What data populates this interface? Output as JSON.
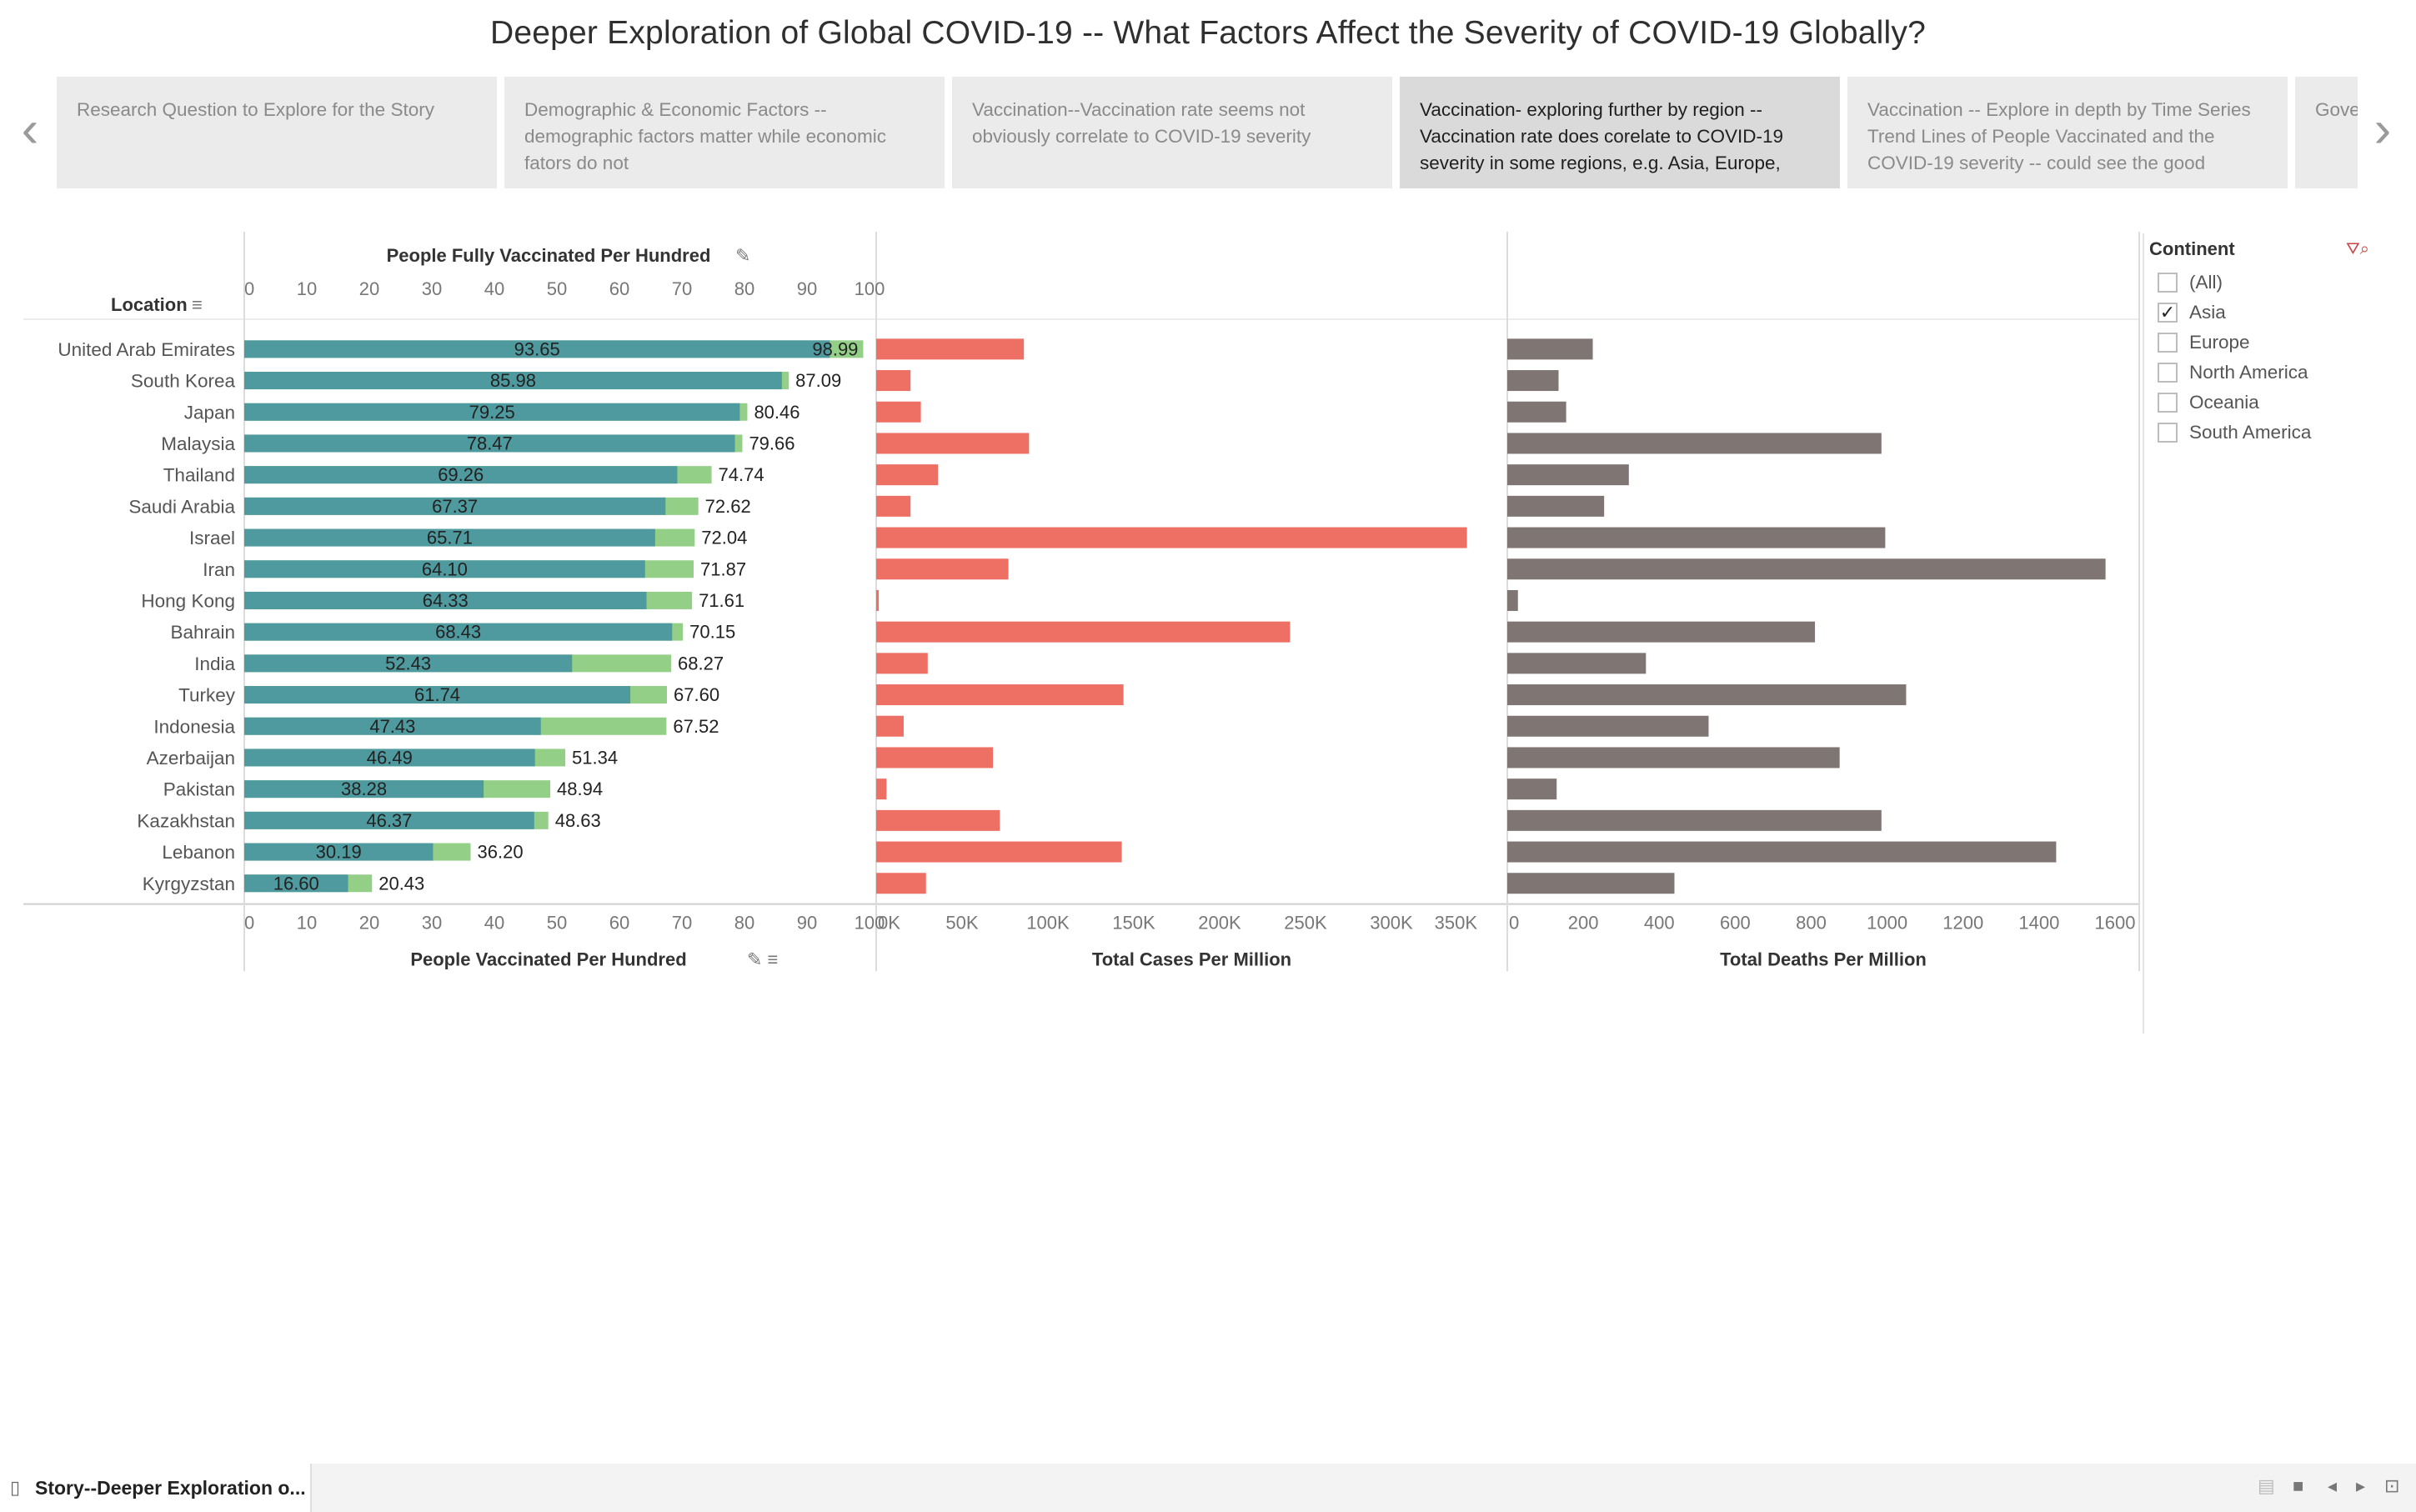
{
  "title": "Deeper Exploration of Global COVID-19 -- What Factors Affect the Severity of COVID-19 Globally?",
  "story_points": [
    {
      "label": "Research Question to Explore for the Story",
      "active": false
    },
    {
      "label": "Demographic & Economic Factors -- demographic factors matter while economic fators do not",
      "active": false
    },
    {
      "label": "Vaccination--Vaccination rate seems not obviously correlate to COVID-19 severity",
      "active": false
    },
    {
      "label": "Vaccination- exploring further by region -- Vaccination rate does corelate to COVID-19 severity in some regions, e.g. Asia, Europe,",
      "active": true
    },
    {
      "label": "Vaccination -- Explore in depth by Time Series Trend Lines of People Vaccinated and the COVID-19 severity -- could see the good",
      "active": false
    },
    {
      "label": "Gove meas seve",
      "active": false
    }
  ],
  "filter": {
    "title": "Continent",
    "items": [
      {
        "label": "(All)",
        "checked": false
      },
      {
        "label": "Asia",
        "checked": true
      },
      {
        "label": "Europe",
        "checked": false
      },
      {
        "label": "North America",
        "checked": false
      },
      {
        "label": "Oceania",
        "checked": false
      },
      {
        "label": "South America",
        "checked": false
      }
    ]
  },
  "bottom_bar": {
    "sheet_label": "Story--Deeper Exploration o..."
  },
  "colors": {
    "fully_vaccinated": "#4f9a9e",
    "vaccinated": "#93cf86",
    "cases": "#ee6f63",
    "deaths": "#7f7573"
  },
  "chart_data": {
    "type": "bar",
    "row_header": "Location",
    "categories": [
      "United Arab Emirates",
      "South Korea",
      "Japan",
      "Malaysia",
      "Thailand",
      "Saudi Arabia",
      "Israel",
      "Iran",
      "Hong Kong",
      "Bahrain",
      "India",
      "Turkey",
      "Indonesia",
      "Azerbaijan",
      "Pakistan",
      "Kazakhstan",
      "Lebanon",
      "Kyrgyzstan"
    ],
    "panels": [
      {
        "id": "vaccination",
        "top_axis_title": "People Fully Vaccinated Per Hundred",
        "bottom_axis_title": "People Vaccinated Per Hundred",
        "xlim": [
          0,
          100
        ],
        "ticks": [
          "0",
          "10",
          "20",
          "30",
          "40",
          "50",
          "60",
          "70",
          "80",
          "90",
          "100"
        ],
        "series": [
          {
            "name": "People Vaccinated Per Hundred",
            "values": [
              98.99,
              87.09,
              80.46,
              79.66,
              74.74,
              72.62,
              72.04,
              71.87,
              71.61,
              70.15,
              68.27,
              67.6,
              67.52,
              51.34,
              48.94,
              48.63,
              36.2,
              20.43
            ],
            "labels": [
              "98.99",
              "87.09",
              "80.46",
              "79.66",
              "74.74",
              "72.62",
              "72.04",
              "71.87",
              "71.61",
              "70.15",
              "68.27",
              "67.60",
              "67.52",
              "51.34",
              "48.94",
              "48.63",
              "36.20",
              "20.43"
            ]
          },
          {
            "name": "People Fully Vaccinated Per Hundred",
            "values": [
              93.65,
              85.98,
              79.25,
              78.47,
              69.26,
              67.37,
              65.71,
              64.1,
              64.33,
              68.43,
              52.43,
              61.74,
              47.43,
              46.49,
              38.28,
              46.37,
              30.19,
              16.6
            ],
            "labels": [
              "93.65",
              "85.98",
              "79.25",
              "78.47",
              "69.26",
              "67.37",
              "65.71",
              "64.10",
              "64.33",
              "68.43",
              "52.43",
              "61.74",
              "47.43",
              "46.49",
              "38.28",
              "46.37",
              "30.19",
              "16.60"
            ]
          }
        ]
      },
      {
        "id": "cases",
        "bottom_axis_title": "Total Cases Per Million",
        "xlim": [
          0,
          350000
        ],
        "ticks": [
          "0K",
          "50K",
          "100K",
          "150K",
          "200K",
          "250K",
          "300K",
          "350K"
        ],
        "series": [
          {
            "name": "Total Cases Per Million",
            "values": [
              86000,
              20000,
              26000,
              89000,
              36000,
              20000,
              344000,
              77000,
              1500,
              241000,
              30000,
              144000,
              16000,
              68000,
              6000,
              72000,
              143000,
              29000
            ]
          }
        ]
      },
      {
        "id": "deaths",
        "bottom_axis_title": "Total Deaths Per Million",
        "xlim": [
          0,
          1600
        ],
        "ticks": [
          "0",
          "200",
          "400",
          "600",
          "800",
          "1000",
          "1200",
          "1400",
          "1600"
        ],
        "series": [
          {
            "name": "Total Deaths Per Million",
            "values": [
              225,
              135,
              155,
              985,
              320,
              255,
              995,
              1575,
              28,
              810,
              365,
              1050,
              530,
              875,
              130,
              985,
              1445,
              440
            ]
          }
        ]
      }
    ]
  }
}
